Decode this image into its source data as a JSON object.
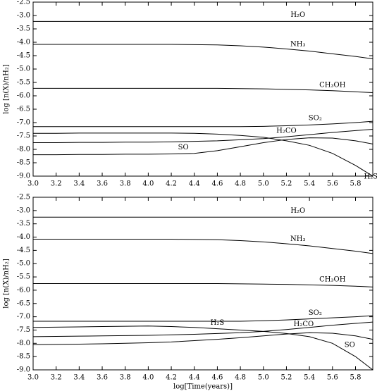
{
  "chart_data": [
    {
      "type": "line",
      "ylabel": "log [n(X)/nH₂]",
      "color": "#000000",
      "xlim": [
        3.0,
        5.95
      ],
      "ylim": [
        -9.0,
        -2.5
      ],
      "xticks": [
        {
          "value": 3.0,
          "label": "3.0"
        },
        3.2,
        3.4,
        3.6,
        3.8,
        {
          "value": 4.0,
          "label": "4.0"
        },
        4.2,
        4.4,
        4.6,
        4.8,
        {
          "value": 5.0,
          "label": "5.0"
        },
        5.2,
        5.4,
        5.6,
        5.8
      ],
      "yticks": [
        -2.5,
        {
          "value": -3.0,
          "label": "-3.0"
        },
        -3.5,
        {
          "value": -4.0,
          "label": "-4.0"
        },
        -4.5,
        {
          "value": -5.0,
          "label": "-5.0"
        },
        -5.5,
        {
          "value": -6.0,
          "label": "-6.0"
        },
        -6.5,
        {
          "value": -7.0,
          "label": "-7.0"
        },
        -7.5,
        {
          "value": -8.0,
          "label": "-8.0"
        },
        -8.5,
        {
          "value": -9.0,
          "label": "-9.0"
        }
      ],
      "x": [
        3.0,
        3.2,
        3.4,
        3.6,
        3.8,
        4.0,
        4.2,
        4.4,
        4.6,
        4.8,
        5.0,
        5.2,
        5.4,
        5.6,
        5.8,
        5.95
      ],
      "series": [
        {
          "name": "H₂O",
          "values": [
            -3.22,
            -3.22,
            -3.22,
            -3.22,
            -3.22,
            -3.22,
            -3.22,
            -3.22,
            -3.22,
            -3.22,
            -3.22,
            -3.22,
            -3.22,
            -3.22,
            -3.22,
            -3.22
          ]
        },
        {
          "name": "NH₃",
          "values": [
            -4.08,
            -4.08,
            -4.08,
            -4.08,
            -4.08,
            -4.08,
            -4.08,
            -4.09,
            -4.1,
            -4.13,
            -4.18,
            -4.25,
            -4.33,
            -4.43,
            -4.53,
            -4.62
          ]
        },
        {
          "name": "CH₃OH",
          "values": [
            -5.72,
            -5.72,
            -5.72,
            -5.72,
            -5.72,
            -5.72,
            -5.72,
            -5.72,
            -5.72,
            -5.73,
            -5.74,
            -5.76,
            -5.78,
            -5.81,
            -5.85,
            -5.88
          ]
        },
        {
          "name": "SO₂",
          "values": [
            -7.15,
            -7.15,
            -7.15,
            -7.15,
            -7.15,
            -7.15,
            -7.15,
            -7.15,
            -7.15,
            -7.15,
            -7.14,
            -7.12,
            -7.09,
            -7.05,
            -7.0,
            -6.95
          ]
        },
        {
          "name": "H₂CO",
          "values": [
            -7.75,
            -7.75,
            -7.74,
            -7.74,
            -7.73,
            -7.73,
            -7.72,
            -7.7,
            -7.68,
            -7.64,
            -7.6,
            -7.53,
            -7.45,
            -7.37,
            -7.3,
            -7.25
          ]
        },
        {
          "name": "SO",
          "values": [
            -8.2,
            -8.2,
            -8.19,
            -8.19,
            -8.18,
            -8.18,
            -8.17,
            -8.15,
            -8.05,
            -7.9,
            -7.75,
            -7.63,
            -7.57,
            -7.58,
            -7.68,
            -7.8
          ]
        },
        {
          "name": "H₂S",
          "values": [
            -7.4,
            -7.4,
            -7.39,
            -7.39,
            -7.39,
            -7.39,
            -7.39,
            -7.4,
            -7.43,
            -7.48,
            -7.55,
            -7.68,
            -7.85,
            -8.15,
            -8.6,
            -9.0
          ]
        }
      ]
    },
    {
      "type": "line",
      "xlabel": "log[Time(years)]",
      "ylabel": "log [n(X)/nH₂]",
      "color": "#000000",
      "xlim": [
        3.0,
        5.95
      ],
      "ylim": [
        -9.0,
        -2.5
      ],
      "xticks": [
        {
          "value": 3.0,
          "label": "3.0"
        },
        3.2,
        3.4,
        3.6,
        3.8,
        {
          "value": 4.0,
          "label": "4.0"
        },
        4.2,
        4.4,
        4.6,
        4.8,
        {
          "value": 5.0,
          "label": "5.0"
        },
        5.2,
        5.4,
        5.6,
        5.8
      ],
      "yticks": [
        -2.5,
        {
          "value": -3.0,
          "label": "-3.0"
        },
        -3.5,
        {
          "value": -4.0,
          "label": "-4.0"
        },
        -4.5,
        {
          "value": -5.0,
          "label": "-5.0"
        },
        -5.5,
        {
          "value": -6.0,
          "label": "-6.0"
        },
        -6.5,
        {
          "value": -7.0,
          "label": "-7.0"
        },
        -7.5,
        {
          "value": -8.0,
          "label": "-8.0"
        },
        -8.5,
        {
          "value": -9.0,
          "label": "-9.0"
        }
      ],
      "x": [
        3.0,
        3.2,
        3.4,
        3.6,
        3.8,
        4.0,
        4.2,
        4.4,
        4.6,
        4.8,
        5.0,
        5.2,
        5.4,
        5.6,
        5.8,
        5.95
      ],
      "series": [
        {
          "name": "H₂O",
          "values": [
            -3.25,
            -3.25,
            -3.25,
            -3.25,
            -3.25,
            -3.25,
            -3.25,
            -3.25,
            -3.25,
            -3.25,
            -3.25,
            -3.25,
            -3.25,
            -3.25,
            -3.25,
            -3.25
          ]
        },
        {
          "name": "NH₃",
          "values": [
            -4.08,
            -4.08,
            -4.08,
            -4.08,
            -4.08,
            -4.08,
            -4.08,
            -4.09,
            -4.1,
            -4.13,
            -4.18,
            -4.25,
            -4.33,
            -4.43,
            -4.53,
            -4.62
          ]
        },
        {
          "name": "CH₃OH",
          "values": [
            -5.75,
            -5.75,
            -5.75,
            -5.75,
            -5.75,
            -5.75,
            -5.75,
            -5.75,
            -5.75,
            -5.76,
            -5.77,
            -5.78,
            -5.8,
            -5.82,
            -5.85,
            -5.88
          ]
        },
        {
          "name": "SO₂",
          "values": [
            -7.17,
            -7.17,
            -7.17,
            -7.17,
            -7.17,
            -7.17,
            -7.17,
            -7.17,
            -7.17,
            -7.17,
            -7.15,
            -7.12,
            -7.08,
            -7.04,
            -7.0,
            -6.96
          ]
        },
        {
          "name": "H₂S",
          "values": [
            -7.4,
            -7.39,
            -7.38,
            -7.37,
            -7.36,
            -7.35,
            -7.37,
            -7.4,
            -7.45,
            -7.5,
            -7.55,
            -7.63,
            -7.75,
            -8.0,
            -8.5,
            -9.0
          ]
        },
        {
          "name": "H₂CO",
          "values": [
            -7.75,
            -7.74,
            -7.73,
            -7.72,
            -7.71,
            -7.7,
            -7.68,
            -7.66,
            -7.63,
            -7.6,
            -7.55,
            -7.48,
            -7.4,
            -7.32,
            -7.25,
            -7.2
          ]
        },
        {
          "name": "SO",
          "values": [
            -8.05,
            -8.04,
            -8.03,
            -8.02,
            -8.0,
            -7.98,
            -7.95,
            -7.9,
            -7.85,
            -7.79,
            -7.72,
            -7.65,
            -7.6,
            -7.62,
            -7.72,
            -7.85
          ]
        }
      ]
    }
  ]
}
